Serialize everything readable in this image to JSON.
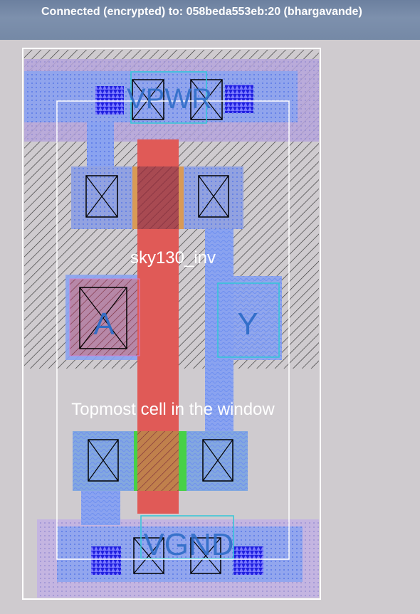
{
  "window": {
    "title": "Connected (encrypted) to: 058beda553eb:20 (bhargavande)"
  },
  "layout_view": {
    "cell_name": "sky130_inv",
    "window_note": "Topmost cell in the window",
    "pins": {
      "power": "VPWR",
      "ground": "VGND",
      "input": "A",
      "output": "Y"
    },
    "colors": {
      "background": "#cfcbcf",
      "nwell_hatch": "#3a3a3a",
      "locali": "#8aa3f0",
      "metal1": "#a7a0d8",
      "poly": "#e05a57",
      "pdiff": "#d99a55",
      "ndiff": "#47d147",
      "contact": "#1d1dd6",
      "label_text": "#2f6dc8",
      "bbox": "#ffffff",
      "pin_box": "#30c8d8"
    }
  }
}
